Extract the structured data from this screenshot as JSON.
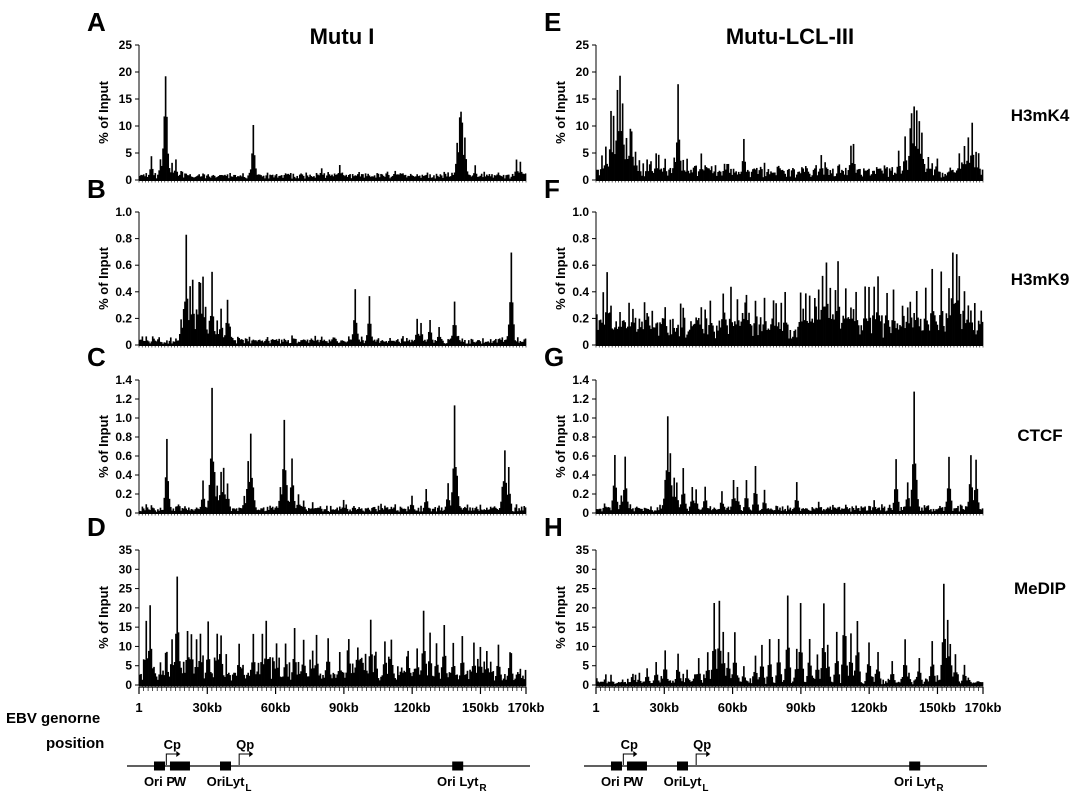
{
  "figure": {
    "genome_label_line1": "EBV genorne",
    "genome_label_line2": "position"
  },
  "chart_data": [
    {
      "id": "A",
      "type": "bar",
      "column": "Mutu I",
      "mark": "H3mK4",
      "ylabel": "% of Input",
      "ylim": [
        0,
        25
      ],
      "yticks": [
        0,
        5,
        10,
        15,
        20,
        25
      ],
      "xlim": [
        1,
        170000
      ],
      "baseline": 0.8,
      "noise": 0.6,
      "peaks": [
        [
          5000,
          5
        ],
        [
          9000,
          4
        ],
        [
          10500,
          6
        ],
        [
          11000,
          12
        ],
        [
          11500,
          19.5
        ],
        [
          12000,
          12
        ],
        [
          12700,
          5
        ],
        [
          14000,
          3.5
        ],
        [
          16000,
          4
        ],
        [
          49500,
          3
        ],
        [
          50000,
          11
        ],
        [
          50600,
          4
        ],
        [
          80000,
          2.5
        ],
        [
          88000,
          3
        ],
        [
          140000,
          7
        ],
        [
          141000,
          12
        ],
        [
          141600,
          13
        ],
        [
          142200,
          11
        ],
        [
          143000,
          8
        ],
        [
          144000,
          4
        ],
        [
          148000,
          3
        ],
        [
          166000,
          4
        ],
        [
          168000,
          3.5
        ]
      ]
    },
    {
      "id": "B",
      "type": "bar",
      "column": "Mutu I",
      "mark": "H3mK9",
      "ylabel": "% of Input",
      "ylim": [
        0,
        1.0
      ],
      "yticks": [
        "0",
        "0.2",
        "0.4",
        "0.6",
        "0.8",
        "1.0"
      ],
      "xlim": [
        1,
        170000
      ],
      "baseline": 0.03,
      "noise": 0.04,
      "peaks": [
        [
          18000,
          0.2
        ],
        [
          19500,
          0.3
        ],
        [
          20500,
          0.85
        ],
        [
          22000,
          0.45
        ],
        [
          23500,
          0.54
        ],
        [
          25000,
          0.3
        ],
        [
          26000,
          0.53
        ],
        [
          27000,
          0.5
        ],
        [
          28000,
          0.54
        ],
        [
          29000,
          0.3
        ],
        [
          30500,
          0.2
        ],
        [
          32000,
          0.56
        ],
        [
          34000,
          0.2
        ],
        [
          36000,
          0.3
        ],
        [
          38500,
          0.39
        ],
        [
          40000,
          0.15
        ],
        [
          95000,
          0.43
        ],
        [
          101000,
          0.37
        ],
        [
          122000,
          0.2
        ],
        [
          124000,
          0.18
        ],
        [
          128000,
          0.22
        ],
        [
          132000,
          0.14
        ],
        [
          139000,
          0.35
        ],
        [
          164000,
          0.8
        ]
      ]
    },
    {
      "id": "C",
      "type": "bar",
      "column": "Mutu I",
      "mark": "CTCF",
      "ylabel": "% of Input",
      "ylim": [
        0,
        1.4
      ],
      "yticks": [
        "0",
        "0.2",
        "0.4",
        "0.6",
        "0.8",
        "1.0",
        "1.2",
        "1.4"
      ],
      "xlim": [
        1,
        170000
      ],
      "baseline": 0.04,
      "noise": 0.05,
      "peaks": [
        [
          12000,
          0.87
        ],
        [
          13000,
          0.15
        ],
        [
          28000,
          0.35
        ],
        [
          30500,
          0.3
        ],
        [
          32000,
          1.34
        ],
        [
          33000,
          0.45
        ],
        [
          34000,
          0.3
        ],
        [
          36000,
          0.45
        ],
        [
          37000,
          0.5
        ],
        [
          38500,
          0.35
        ],
        [
          46000,
          0.2
        ],
        [
          48000,
          0.6
        ],
        [
          49000,
          0.85
        ],
        [
          50000,
          0.3
        ],
        [
          62000,
          0.3
        ],
        [
          63500,
          1.12
        ],
        [
          65000,
          0.3
        ],
        [
          67000,
          0.66
        ],
        [
          70000,
          0.2
        ],
        [
          72000,
          0.15
        ],
        [
          76000,
          0.12
        ],
        [
          90000,
          0.14
        ],
        [
          91000,
          0.1
        ],
        [
          120000,
          0.2
        ],
        [
          126000,
          0.28
        ],
        [
          136000,
          0.35
        ],
        [
          138000,
          0.45
        ],
        [
          139000,
          1.19
        ],
        [
          140000,
          0.4
        ],
        [
          160000,
          0.3
        ],
        [
          161000,
          0.76
        ],
        [
          162500,
          0.5
        ]
      ]
    },
    {
      "id": "D",
      "type": "bar",
      "column": "Mutu I",
      "mark": "MeDIP",
      "ylabel": "% of Input",
      "ylim": [
        0,
        35
      ],
      "yticks": [
        0,
        5,
        10,
        15,
        20,
        25,
        30,
        35
      ],
      "xlim": [
        1,
        170000
      ],
      "baseline": 2.5,
      "noise": 6,
      "peaks": [
        [
          3000,
          17
        ],
        [
          4500,
          22
        ],
        [
          9000,
          6
        ],
        [
          14000,
          12
        ],
        [
          16500,
          31
        ],
        [
          21000,
          16
        ],
        [
          23000,
          15
        ],
        [
          25000,
          12
        ],
        [
          27000,
          14
        ],
        [
          30000,
          17
        ],
        [
          34000,
          15
        ],
        [
          36000,
          13
        ],
        [
          44000,
          12
        ],
        [
          50000,
          15
        ],
        [
          54000,
          14
        ],
        [
          56000,
          17
        ],
        [
          60000,
          11
        ],
        [
          64000,
          12
        ],
        [
          68000,
          15
        ],
        [
          72000,
          12
        ],
        [
          76000,
          10
        ],
        [
          78000,
          13
        ],
        [
          83000,
          14
        ],
        [
          88000,
          9
        ],
        [
          92000,
          14
        ],
        [
          96000,
          11
        ],
        [
          102000,
          17
        ],
        [
          104000,
          10
        ],
        [
          108000,
          13
        ],
        [
          111000,
          12
        ],
        [
          118000,
          10
        ],
        [
          122000,
          11
        ],
        [
          125000,
          21
        ],
        [
          128000,
          14
        ],
        [
          131000,
          12
        ],
        [
          134000,
          17
        ],
        [
          138000,
          12
        ],
        [
          142000,
          13
        ],
        [
          147000,
          12
        ],
        [
          150000,
          11
        ],
        [
          153000,
          10
        ],
        [
          158000,
          12
        ],
        [
          163000,
          9
        ]
      ]
    },
    {
      "id": "E",
      "type": "bar",
      "column": "Mutu-LCL-III",
      "mark": "H3mK4",
      "ylabel": "% of Input",
      "ylim": [
        0,
        25
      ],
      "yticks": [
        0,
        5,
        10,
        15,
        20,
        25
      ],
      "xlim": [
        1,
        170000
      ],
      "baseline": 1.5,
      "noise": 1.5,
      "peaks": [
        [
          2000,
          5
        ],
        [
          4000,
          7
        ],
        [
          6000,
          13
        ],
        [
          7500,
          12
        ],
        [
          9000,
          17
        ],
        [
          10000,
          20.5
        ],
        [
          11500,
          15
        ],
        [
          13000,
          9
        ],
        [
          14500,
          10
        ],
        [
          15500,
          10
        ],
        [
          17000,
          6
        ],
        [
          19000,
          4
        ],
        [
          22000,
          4
        ],
        [
          24000,
          4
        ],
        [
          26000,
          5
        ],
        [
          27500,
          5
        ],
        [
          30000,
          4
        ],
        [
          34000,
          4.5
        ],
        [
          36000,
          18
        ],
        [
          38000,
          4
        ],
        [
          40000,
          4
        ],
        [
          43000,
          3
        ],
        [
          46000,
          5
        ],
        [
          58000,
          3
        ],
        [
          65000,
          8
        ],
        [
          80000,
          3
        ],
        [
          92000,
          3
        ],
        [
          99000,
          5
        ],
        [
          112000,
          7
        ],
        [
          113000,
          7.5
        ],
        [
          127000,
          3
        ],
        [
          133000,
          6
        ],
        [
          136000,
          9
        ],
        [
          138000,
          11
        ],
        [
          139000,
          13
        ],
        [
          140000,
          15.5
        ],
        [
          141000,
          13
        ],
        [
          142000,
          11
        ],
        [
          143500,
          9
        ],
        [
          146000,
          5
        ],
        [
          150000,
          4
        ],
        [
          160000,
          5
        ],
        [
          162000,
          7
        ],
        [
          164000,
          8
        ],
        [
          165500,
          11
        ],
        [
          167000,
          6
        ],
        [
          168500,
          5
        ]
      ]
    },
    {
      "id": "F",
      "type": "bar",
      "column": "Mutu-LCL-III",
      "mark": "H3mK9",
      "ylabel": "% of Input",
      "ylim": [
        0,
        1.0
      ],
      "yticks": [
        "0",
        "0.2",
        "0.4",
        "0.6",
        "0.8",
        "1.0"
      ],
      "xlim": [
        1,
        170000
      ],
      "baseline": 0.14,
      "noise": 0.14,
      "peaks": [
        [
          3000,
          0.4
        ],
        [
          4500,
          0.56
        ],
        [
          6000,
          0.3
        ],
        [
          14000,
          0.32
        ],
        [
          16000,
          0.3
        ],
        [
          22000,
          0.28
        ],
        [
          30000,
          0.33
        ],
        [
          38000,
          0.28
        ],
        [
          46000,
          0.3
        ],
        [
          50000,
          0.34
        ],
        [
          56000,
          0.45
        ],
        [
          59000,
          0.44
        ],
        [
          62000,
          0.4
        ],
        [
          66000,
          0.44
        ],
        [
          70000,
          0.38
        ],
        [
          74000,
          0.4
        ],
        [
          78000,
          0.34
        ],
        [
          83000,
          0.42
        ],
        [
          90000,
          0.4
        ],
        [
          92000,
          0.44
        ],
        [
          94000,
          0.4
        ],
        [
          96000,
          0.4
        ],
        [
          98000,
          0.44
        ],
        [
          99500,
          0.59
        ],
        [
          101000,
          0.69
        ],
        [
          103000,
          0.5
        ],
        [
          105000,
          0.47
        ],
        [
          106500,
          0.64
        ],
        [
          110000,
          0.45
        ],
        [
          114000,
          0.42
        ],
        [
          118000,
          0.48
        ],
        [
          120000,
          0.46
        ],
        [
          122000,
          0.5
        ],
        [
          124000,
          0.56
        ],
        [
          128000,
          0.46
        ],
        [
          131000,
          0.42
        ],
        [
          135000,
          0.32
        ],
        [
          138000,
          0.38
        ],
        [
          141000,
          0.46
        ],
        [
          145000,
          0.45
        ],
        [
          148000,
          0.6
        ],
        [
          152000,
          0.58
        ],
        [
          155000,
          0.5
        ],
        [
          157000,
          0.8
        ],
        [
          158500,
          0.76
        ],
        [
          160000,
          0.6
        ],
        [
          162000,
          0.42
        ]
      ]
    },
    {
      "id": "G",
      "type": "bar",
      "column": "Mutu-LCL-III",
      "mark": "CTCF",
      "ylabel": "% of Input",
      "ylim": [
        0,
        1.4
      ],
      "yticks": [
        "0",
        "0.2",
        "0.4",
        "0.6",
        "0.8",
        "1.0",
        "1.2",
        "1.4"
      ],
      "xlim": [
        1,
        170000
      ],
      "baseline": 0.04,
      "noise": 0.05,
      "peaks": [
        [
          8000,
          0.66
        ],
        [
          11000,
          0.2
        ],
        [
          12500,
          0.6
        ],
        [
          30000,
          0.35
        ],
        [
          31500,
          1.04
        ],
        [
          32500,
          0.68
        ],
        [
          34000,
          0.4
        ],
        [
          35500,
          0.35
        ],
        [
          38000,
          0.5
        ],
        [
          42000,
          0.3
        ],
        [
          44000,
          0.25
        ],
        [
          48000,
          0.3
        ],
        [
          55000,
          0.25
        ],
        [
          60000,
          0.35
        ],
        [
          62000,
          0.3
        ],
        [
          66000,
          0.35
        ],
        [
          70000,
          0.5
        ],
        [
          74000,
          0.25
        ],
        [
          88000,
          0.33
        ],
        [
          98000,
          0.12
        ],
        [
          110000,
          0.1
        ],
        [
          122000,
          0.15
        ],
        [
          132000,
          0.62
        ],
        [
          137000,
          0.35
        ],
        [
          140000,
          1.28
        ],
        [
          141000,
          0.35
        ],
        [
          155000,
          0.66
        ],
        [
          165000,
          0.68
        ],
        [
          167000,
          0.57
        ]
      ]
    },
    {
      "id": "H",
      "type": "bar",
      "column": "Mutu-LCL-III",
      "mark": "MeDIP",
      "ylabel": "% of Input",
      "ylim": [
        0,
        35
      ],
      "yticks": [
        0,
        5,
        10,
        15,
        20,
        25,
        30,
        35
      ],
      "xlim": [
        1,
        170000
      ],
      "baseline": 0.6,
      "noise": 2.5,
      "peaks": [
        [
          16000,
          3
        ],
        [
          22000,
          5
        ],
        [
          26000,
          6
        ],
        [
          30000,
          9
        ],
        [
          36000,
          9
        ],
        [
          40000,
          4
        ],
        [
          45000,
          7
        ],
        [
          49000,
          9
        ],
        [
          52000,
          22.5
        ],
        [
          54000,
          22
        ],
        [
          56000,
          14
        ],
        [
          58000,
          10
        ],
        [
          61000,
          14
        ],
        [
          65000,
          5
        ],
        [
          70000,
          8
        ],
        [
          73000,
          11
        ],
        [
          76000,
          12
        ],
        [
          80000,
          14
        ],
        [
          84000,
          23.5
        ],
        [
          88000,
          10
        ],
        [
          90000,
          22
        ],
        [
          94000,
          13
        ],
        [
          97000,
          9
        ],
        [
          100000,
          22
        ],
        [
          102000,
          11
        ],
        [
          106000,
          14
        ],
        [
          109000,
          29
        ],
        [
          112000,
          14
        ],
        [
          115000,
          19
        ],
        [
          120000,
          12
        ],
        [
          124000,
          9
        ],
        [
          130000,
          7
        ],
        [
          136000,
          12
        ],
        [
          142000,
          8
        ],
        [
          148000,
          12
        ],
        [
          153000,
          28.5
        ],
        [
          154500,
          18
        ],
        [
          156000,
          12
        ],
        [
          158000,
          8
        ],
        [
          162000,
          6
        ]
      ]
    }
  ],
  "xaxis": {
    "ticks": [
      {
        "pos": 1,
        "label": "1"
      },
      {
        "pos": 30000,
        "label": "30kb"
      },
      {
        "pos": 60000,
        "label": "60kb"
      },
      {
        "pos": 90000,
        "label": "90kb"
      },
      {
        "pos": 120000,
        "label": "120kb"
      },
      {
        "pos": 150000,
        "label": "150kb"
      },
      {
        "pos": 170000,
        "label": "170kb"
      }
    ]
  },
  "genome_map": {
    "features": [
      {
        "label": "Ori P",
        "pos": 9000
      },
      {
        "label": "W",
        "pos": 18000
      },
      {
        "label": "OriLyt",
        "sub": "L",
        "pos": 38000
      },
      {
        "label": "Ori Lyt",
        "sub": "R",
        "pos": 140000
      }
    ],
    "promoters": [
      {
        "label": "Cp",
        "pos": 12000
      },
      {
        "label": "Qp",
        "pos": 44000
      }
    ]
  }
}
